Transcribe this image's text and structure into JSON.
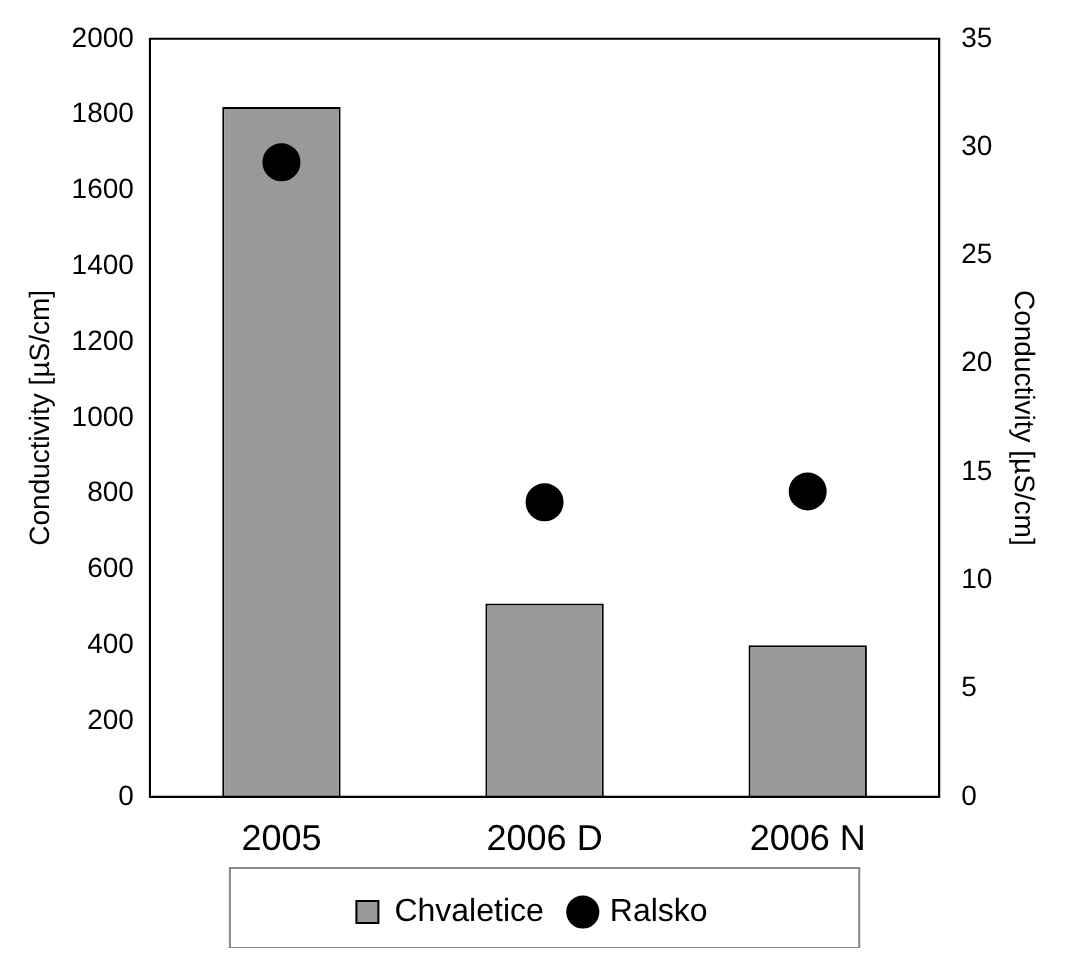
{
  "chart_data": {
    "type": "bar",
    "categories": [
      "2005",
      "2006 D",
      "2006 N"
    ],
    "series": [
      {
        "name": "Chvaletice",
        "color": "#999999",
        "values": [
          1820,
          510,
          400
        ]
      },
      {
        "name": "Ralsko",
        "type": "scatter",
        "color": "#000000",
        "axis": "y2",
        "marker": "circle",
        "values": [
          29.3,
          13.6,
          14.1
        ]
      }
    ],
    "ylabel": "Conductivity [µS/cm]",
    "y2label": "Conductivity [µS/cm]",
    "ylim": [
      0,
      2000
    ],
    "yticks": [
      0,
      200,
      400,
      600,
      800,
      1000,
      1200,
      1400,
      1600,
      1800,
      2000
    ],
    "y2lim": [
      0,
      35
    ],
    "y2ticks": [
      0,
      5,
      10,
      15,
      20,
      25,
      30,
      35
    ],
    "legend": "bottom"
  }
}
